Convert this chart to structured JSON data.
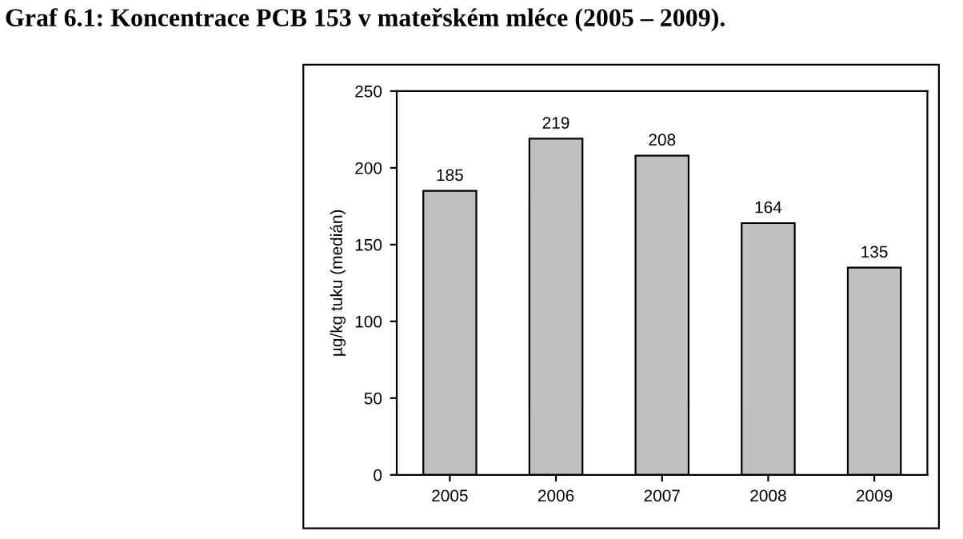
{
  "chart_data": {
    "type": "bar",
    "title": "Graf 6.1: Koncentrace PCB 153 v mateřském mléce (2005 – 2009).",
    "ylabel": "µg/kg tuku (medián)",
    "categories": [
      "2005",
      "2006",
      "2007",
      "2008",
      "2009"
    ],
    "values": [
      185,
      219,
      208,
      164,
      135
    ],
    "color": "#c0c0c0",
    "ylim": [
      0,
      250
    ],
    "yticks": [
      0,
      50,
      100,
      150,
      200,
      250
    ],
    "grid": false,
    "data_labels": true
  }
}
